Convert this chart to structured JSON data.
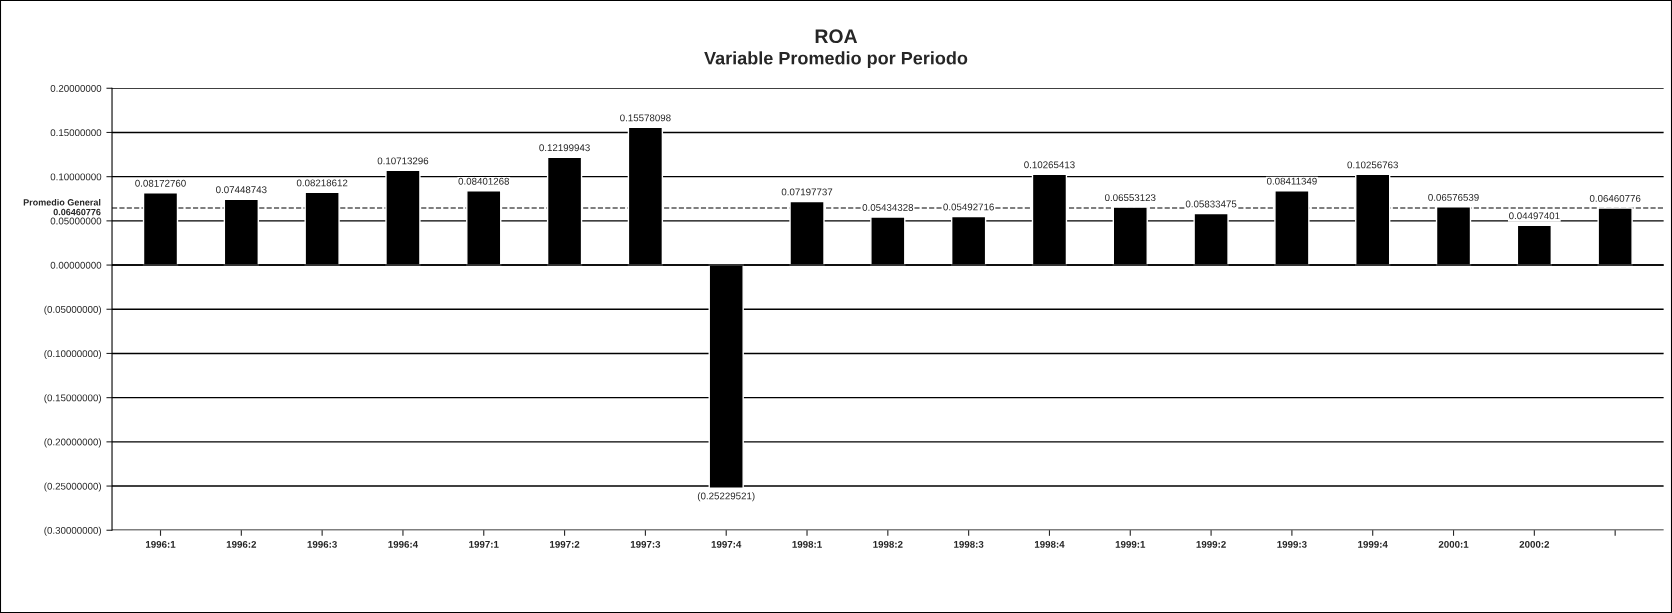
{
  "chart_data": {
    "type": "bar",
    "title": "ROA",
    "subtitle": "Variable Promedio por Periodo",
    "categories": [
      "1996:1",
      "1996:2",
      "1996:3",
      "1996:4",
      "1997:1",
      "1997:2",
      "1997:3",
      "1997:4",
      "1998:1",
      "1998:2",
      "1998:3",
      "1998:4",
      "1999:1",
      "1999:2",
      "1999:3",
      "1999:4",
      "2000:1",
      "2000:2",
      null
    ],
    "values": [
      0.0817276,
      0.07448743,
      0.08218612,
      0.10713296,
      0.08401268,
      0.12199943,
      0.15578098,
      -0.25229521,
      0.07197737,
      0.05434328,
      0.05492716,
      0.10265413,
      0.06553123,
      0.05833475,
      0.08411349,
      0.10256763,
      0.06576539,
      0.04497401,
      0.06460776
    ],
    "value_labels": [
      "0.08172760",
      "0.07448743",
      "0.08218612",
      "0.10713296",
      "0.08401268",
      "0.12199943",
      "0.15578098",
      "(0.25229521)",
      "0.07197737",
      "0.05434328",
      "0.05492716",
      "0.10265413",
      "0.06553123",
      "0.05833475",
      "0.08411349",
      "0.10256763",
      "0.06576539",
      "0.04497401",
      "0.06460776"
    ],
    "color": "#000000",
    "ylim": [
      -0.3,
      0.2
    ],
    "yticks": [
      {
        "value": 0.2,
        "label": "0.20000000"
      },
      {
        "value": 0.15,
        "label": "0.15000000"
      },
      {
        "value": 0.1,
        "label": "0.10000000"
      },
      {
        "value": 0.05,
        "label": "0.05000000"
      },
      {
        "value": 0,
        "label": "0.00000000"
      },
      {
        "value": -0.05,
        "label": "(0.05000000)"
      },
      {
        "value": -0.1,
        "label": "(0.10000000)"
      },
      {
        "value": -0.15,
        "label": "(0.15000000)"
      },
      {
        "value": -0.2,
        "label": "(0.20000000)"
      },
      {
        "value": -0.25,
        "label": "(0.25000000)"
      },
      {
        "value": -0.3,
        "label": "(0.30000000)"
      }
    ],
    "ref_lines": [
      {
        "axis": "y",
        "value": 0.06460776,
        "label": "Promedio General\n0.06460776",
        "color": "#555555",
        "line_style": "dashed"
      }
    ],
    "grid": "y",
    "legend": false
  }
}
